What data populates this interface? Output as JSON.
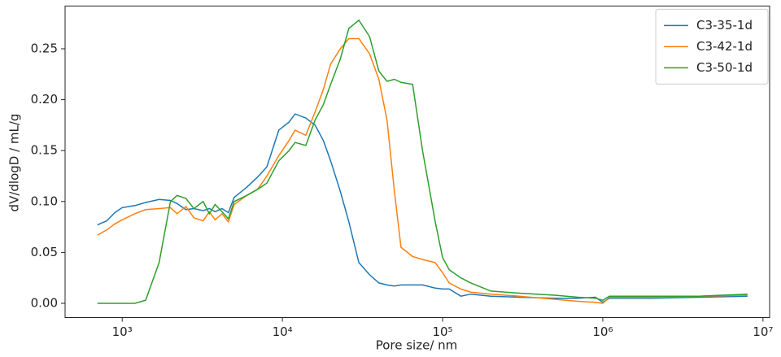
{
  "chart_data": {
    "type": "line",
    "xlabel": "Pore size/ nm",
    "ylabel": "dV/dlogD / mL/g",
    "xscale": "log",
    "legend": "upper right",
    "x": [
      700,
      800,
      900,
      1000,
      1200,
      1400,
      1700,
      2000,
      2200,
      2500,
      2800,
      3200,
      3500,
      3800,
      4200,
      4600,
      5000,
      6000,
      7000,
      8000,
      9500,
      11000,
      12000,
      14000,
      16000,
      18000,
      20000,
      23000,
      26000,
      30000,
      35000,
      40000,
      45000,
      50000,
      55000,
      65000,
      75000,
      90000,
      100000,
      110000,
      130000,
      150000,
      200000,
      300000,
      500000,
      700000,
      900000,
      1000000,
      1100000,
      2000000,
      4000000,
      8000000
    ],
    "series": [
      {
        "name": "C3-35-1d",
        "color": "#1f77b4",
        "values": [
          0.077,
          0.081,
          0.089,
          0.094,
          0.096,
          0.099,
          0.102,
          0.101,
          0.098,
          0.092,
          0.093,
          0.091,
          0.093,
          0.09,
          0.093,
          0.089,
          0.104,
          0.114,
          0.124,
          0.134,
          0.17,
          0.178,
          0.186,
          0.182,
          0.175,
          0.16,
          0.14,
          0.11,
          0.08,
          0.04,
          0.028,
          0.02,
          0.018,
          0.017,
          0.018,
          0.018,
          0.018,
          0.015,
          0.014,
          0.014,
          0.007,
          0.009,
          0.007,
          0.006,
          0.005,
          0.005,
          0.006,
          0.001,
          0.005,
          0.005,
          0.006,
          0.007
        ]
      },
      {
        "name": "C3-42-1d",
        "color": "#ff7f0e",
        "values": [
          0.067,
          0.072,
          0.078,
          0.082,
          0.088,
          0.092,
          0.093,
          0.094,
          0.088,
          0.095,
          0.084,
          0.081,
          0.09,
          0.082,
          0.088,
          0.08,
          0.097,
          0.106,
          0.112,
          0.125,
          0.145,
          0.16,
          0.17,
          0.165,
          0.188,
          0.21,
          0.235,
          0.25,
          0.26,
          0.26,
          0.245,
          0.22,
          0.18,
          0.11,
          0.055,
          0.046,
          0.043,
          0.04,
          0.03,
          0.02,
          0.014,
          0.011,
          0.009,
          0.007,
          0.004,
          0.002,
          0.001,
          0.0,
          0.006,
          0.006,
          0.007,
          0.008
        ]
      },
      {
        "name": "C3-50-1d",
        "color": "#2ca02c",
        "values": [
          0,
          0,
          0,
          0,
          0,
          0.003,
          0.04,
          0.1,
          0.106,
          0.103,
          0.093,
          0.1,
          0.088,
          0.097,
          0.09,
          0.083,
          0.1,
          0.106,
          0.112,
          0.118,
          0.14,
          0.15,
          0.158,
          0.155,
          0.18,
          0.195,
          0.215,
          0.24,
          0.27,
          0.278,
          0.262,
          0.228,
          0.218,
          0.22,
          0.217,
          0.215,
          0.15,
          0.08,
          0.045,
          0.033,
          0.025,
          0.02,
          0.012,
          0.01,
          0.008,
          0.006,
          0.005,
          0.003,
          0.007,
          0.007,
          0.007,
          0.009
        ]
      }
    ],
    "xlim": [
      440,
      11000000
    ],
    "xticks": [
      {
        "value": 1000,
        "label": "10³"
      },
      {
        "value": 10000,
        "label": "10⁴"
      },
      {
        "value": 100000,
        "label": "10⁵"
      },
      {
        "value": 1000000,
        "label": "10⁶"
      },
      {
        "value": 10000000,
        "label": "10⁷"
      }
    ],
    "ylim": [
      -0.014,
      0.292
    ],
    "yticks": [
      {
        "value": 0,
        "label": "0.00"
      },
      {
        "value": 0.05,
        "label": "0.05"
      },
      {
        "value": 0.1,
        "label": "0.10"
      },
      {
        "value": 0.15,
        "label": "0.15"
      },
      {
        "value": 0.2,
        "label": "0.20"
      },
      {
        "value": 0.25,
        "label": "0.25"
      }
    ]
  }
}
